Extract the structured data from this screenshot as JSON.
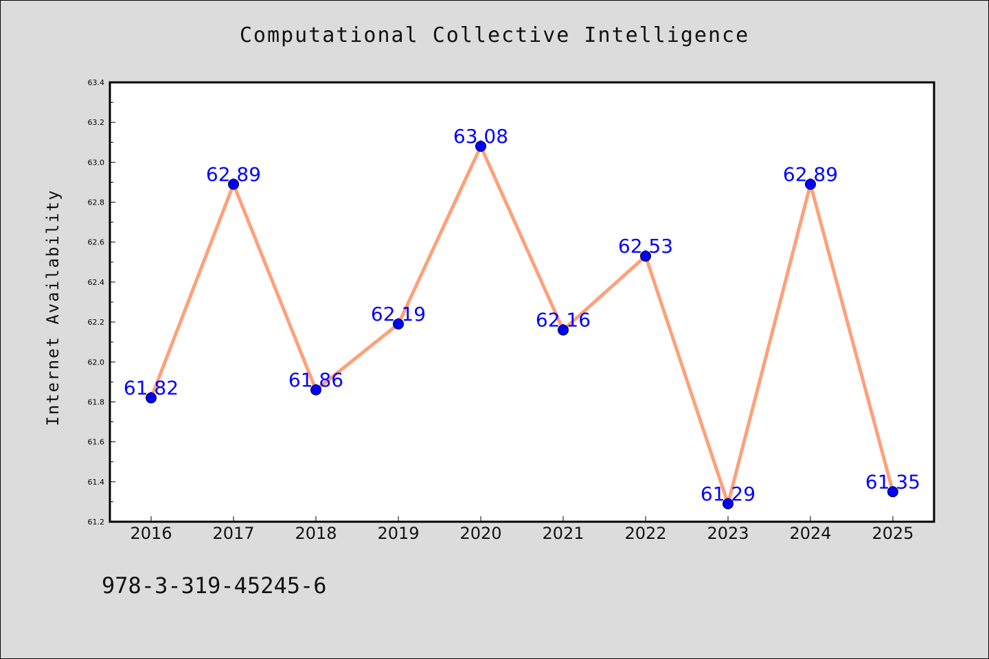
{
  "chart_data": {
    "type": "line",
    "title": "Computational Collective Intelligence",
    "xlabel": "",
    "ylabel": "Internet Availability",
    "categories": [
      "2016",
      "2017",
      "2018",
      "2019",
      "2020",
      "2021",
      "2022",
      "2023",
      "2024",
      "2025"
    ],
    "series": [
      {
        "values": [
          61.82,
          62.89,
          61.86,
          62.19,
          63.08,
          62.16,
          62.53,
          61.29,
          62.89,
          61.35
        ],
        "line_color": "#ffa07a",
        "marker_color": "#0000ff",
        "label_color": "#0000ff"
      }
    ],
    "ylim": [
      61.2,
      63.4
    ],
    "yticks": [
      "61.2",
      "61.4",
      "61.6",
      "61.8",
      "62.0",
      "62.2",
      "62.4",
      "62.6",
      "62.8",
      "63.0",
      "63.2",
      "63.4"
    ],
    "grid": false,
    "data_labels": true
  },
  "footer": {
    "code": "978-3-319-45245-6"
  },
  "colors": {
    "background": "#dcdcdc",
    "plot_area": "#ffffff"
  }
}
